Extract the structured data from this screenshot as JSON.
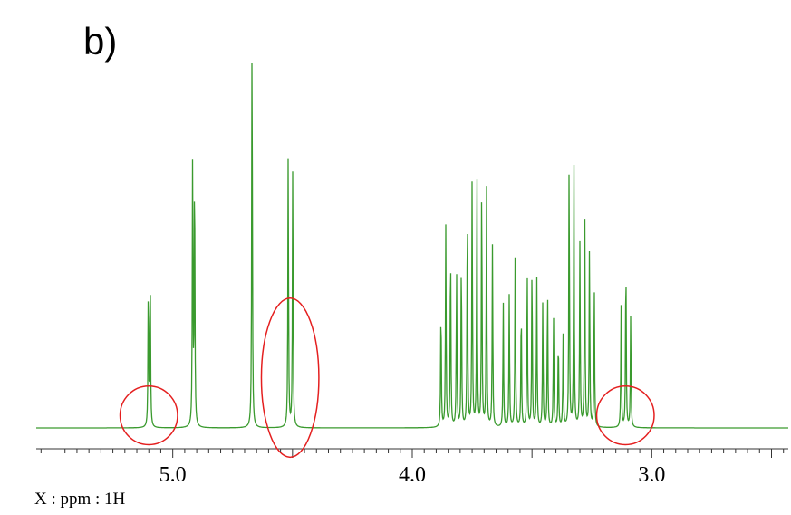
{
  "panel_label": "b)",
  "chart_data": {
    "type": "line",
    "xlabel": "X : ppm : 1H",
    "ylabel": "",
    "x_reversed": true,
    "xlim": [
      5.57,
      2.43
    ],
    "ylim": [
      0,
      1.0
    ],
    "grid": false,
    "line_color": "#3a9a2e",
    "highlight_color": "#e41f1f",
    "tick_labels": [
      "5.0",
      "4.0",
      "3.0"
    ],
    "tick_values": [
      5.0,
      4.0,
      3.0
    ],
    "minor_tick_step": 0.05,
    "peaks": [
      {
        "ppm": 5.102,
        "height": 0.36
      },
      {
        "ppm": 5.094,
        "height": 0.36
      },
      {
        "ppm": 4.917,
        "height": 0.66
      },
      {
        "ppm": 4.909,
        "height": 0.65
      },
      {
        "ppm": 4.669,
        "height": 1.0
      },
      {
        "ppm": 4.518,
        "height": 0.66
      },
      {
        "ppm": 4.499,
        "height": 0.64
      },
      {
        "ppm": 3.88,
        "height": 0.3
      },
      {
        "ppm": 3.86,
        "height": 0.48
      },
      {
        "ppm": 3.84,
        "height": 0.45
      },
      {
        "ppm": 3.815,
        "height": 0.38
      },
      {
        "ppm": 3.795,
        "height": 0.42
      },
      {
        "ppm": 3.77,
        "height": 0.56
      },
      {
        "ppm": 3.75,
        "height": 0.6
      },
      {
        "ppm": 3.73,
        "height": 0.64
      },
      {
        "ppm": 3.71,
        "height": 0.6
      },
      {
        "ppm": 3.69,
        "height": 0.58
      },
      {
        "ppm": 3.665,
        "height": 0.44
      },
      {
        "ppm": 3.62,
        "height": 0.3
      },
      {
        "ppm": 3.595,
        "height": 0.32
      },
      {
        "ppm": 3.57,
        "height": 0.46
      },
      {
        "ppm": 3.545,
        "height": 0.3
      },
      {
        "ppm": 3.52,
        "height": 0.38
      },
      {
        "ppm": 3.5,
        "height": 0.4
      },
      {
        "ppm": 3.48,
        "height": 0.36
      },
      {
        "ppm": 3.455,
        "height": 0.3
      },
      {
        "ppm": 3.435,
        "height": 0.34
      },
      {
        "ppm": 3.41,
        "height": 0.26
      },
      {
        "ppm": 3.39,
        "height": 0.22
      },
      {
        "ppm": 3.37,
        "height": 0.22
      },
      {
        "ppm": 3.345,
        "height": 0.66
      },
      {
        "ppm": 3.325,
        "height": 0.64
      },
      {
        "ppm": 3.3,
        "height": 0.44
      },
      {
        "ppm": 3.28,
        "height": 0.58
      },
      {
        "ppm": 3.26,
        "height": 0.44
      },
      {
        "ppm": 3.24,
        "height": 0.34
      },
      {
        "ppm": 3.128,
        "height": 0.29
      },
      {
        "ppm": 3.108,
        "height": 0.42
      },
      {
        "ppm": 3.088,
        "height": 0.27
      }
    ],
    "highlighted_regions": [
      {
        "ppm": 5.1,
        "height": 0.03,
        "rx_ppm": 0.12,
        "ry_height": 0.07
      },
      {
        "ppm": 4.51,
        "height": 0.12,
        "rx_ppm": 0.12,
        "ry_height": 0.19
      },
      {
        "ppm": 3.11,
        "height": 0.03,
        "rx_ppm": 0.12,
        "ry_height": 0.07
      }
    ]
  }
}
